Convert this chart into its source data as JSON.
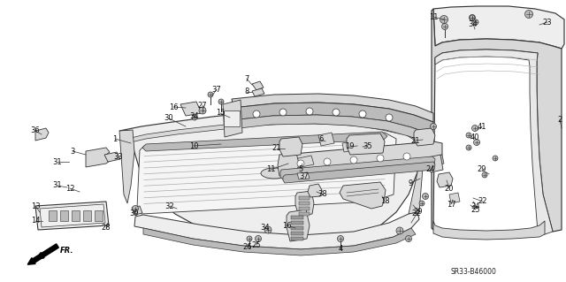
{
  "background_color": "#ffffff",
  "diagram_code": "SR33-B46000",
  "fig_width": 6.4,
  "fig_height": 3.19,
  "dpi": 100,
  "label_fontsize": 6.0,
  "label_color": "#111111",
  "line_color": "#333333",
  "fill_color": "#d8d8d8",
  "fill_light": "#eeeeee",
  "fill_dark": "#bbbbbb"
}
